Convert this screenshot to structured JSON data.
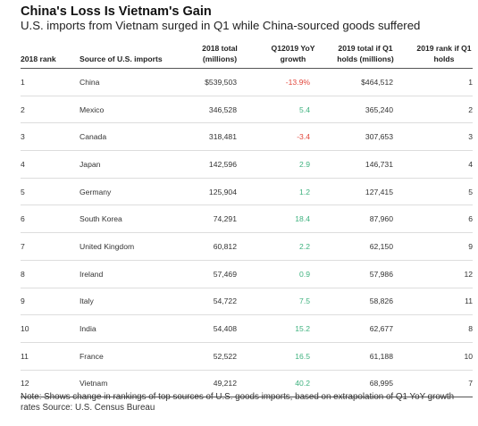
{
  "title": "China's Loss Is Vietnam's Gain",
  "subtitle": "U.S. imports from Vietnam surged in Q1 while China-sourced goods suffered",
  "note": "Note: Shows change in rankings of top sources of U.S. goods imports, based on extrapolation of Q1 YoY growth rates Source: U.S. Census Bureau",
  "colors": {
    "positive": "#3fb27f",
    "negative": "#e2483d"
  },
  "chart_data": {
    "type": "table",
    "title": "China's Loss Is Vietnam's Gain",
    "subtitle": "U.S. imports from Vietnam surged in Q1 while China-sourced goods suffered",
    "columns": [
      "2018 rank",
      "Source of U.S. imports",
      "2018 total (millions)",
      "Q12019 YoY growth",
      "2019 total if Q1 holds (millions)",
      "2019 rank if Q1 holds"
    ],
    "rows": [
      [
        "1",
        "China",
        "$539,503",
        "-13.9%",
        "$464,512",
        "1"
      ],
      [
        "2",
        "Mexico",
        "346,528",
        "5.4",
        "365,240",
        "2"
      ],
      [
        "3",
        "Canada",
        "318,481",
        "-3.4",
        "307,653",
        "3"
      ],
      [
        "4",
        "Japan",
        "142,596",
        "2.9",
        "146,731",
        "4"
      ],
      [
        "5",
        "Germany",
        "125,904",
        "1.2",
        "127,415",
        "5"
      ],
      [
        "6",
        "South Korea",
        "74,291",
        "18.4",
        "87,960",
        "6"
      ],
      [
        "7",
        "United Kingdom",
        "60,812",
        "2.2",
        "62,150",
        "9"
      ],
      [
        "8",
        "Ireland",
        "57,469",
        "0.9",
        "57,986",
        "12"
      ],
      [
        "9",
        "Italy",
        "54,722",
        "7.5",
        "58,826",
        "11"
      ],
      [
        "10",
        "India",
        "54,408",
        "15.2",
        "62,677",
        "8"
      ],
      [
        "11",
        "France",
        "52,522",
        "16.5",
        "61,188",
        "10"
      ],
      [
        "12",
        "Vietnam",
        "49,212",
        "40.2",
        "68,995",
        "7"
      ]
    ],
    "growth_values": [
      -13.9,
      5.4,
      -3.4,
      2.9,
      1.2,
      18.4,
      2.2,
      0.9,
      7.5,
      15.2,
      16.5,
      40.2
    ]
  }
}
